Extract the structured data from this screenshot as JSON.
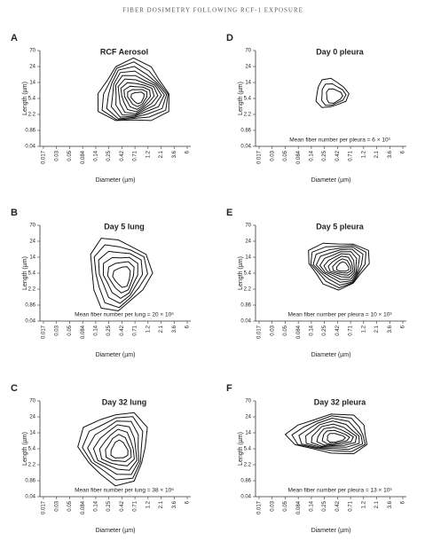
{
  "header": {
    "title": "FIBER DOSIMETRY FOLLOWING RCF-1 EXPOSURE"
  },
  "axes": {
    "y_label": "Length (µm)",
    "x_label": "Diameter (µm)",
    "y_ticks": [
      "0.04",
      "0.86",
      "2.2",
      "5.4",
      "14",
      "24",
      "70"
    ],
    "x_ticks": [
      "0.017",
      "0.03",
      "0.05",
      "0.084",
      "0.14",
      "0.25",
      "0.42",
      "0.71",
      "1.2",
      "2.1",
      "3.6",
      "6"
    ]
  },
  "panels": [
    {
      "letter": "A",
      "title": "RCF Aerosol"
    },
    {
      "letter": "D",
      "title": "Day 0 pleura",
      "note": "Mean fiber number per pleura = 6 × 10³"
    },
    {
      "letter": "B",
      "title": "Day 5 lung",
      "note": "Mean fiber number per lung = 20 × 10⁶"
    },
    {
      "letter": "E",
      "title": "Day 5 pleura",
      "note": "Mean fiber number per pleura = 10 × 10³"
    },
    {
      "letter": "C",
      "title": "Day 32 lung",
      "note": "Mean fiber number per lung = 38 × 10⁶"
    },
    {
      "letter": "F",
      "title": "Day 32 pleura",
      "note": "Mean fiber number per pleura = 13 × 10³"
    }
  ]
}
